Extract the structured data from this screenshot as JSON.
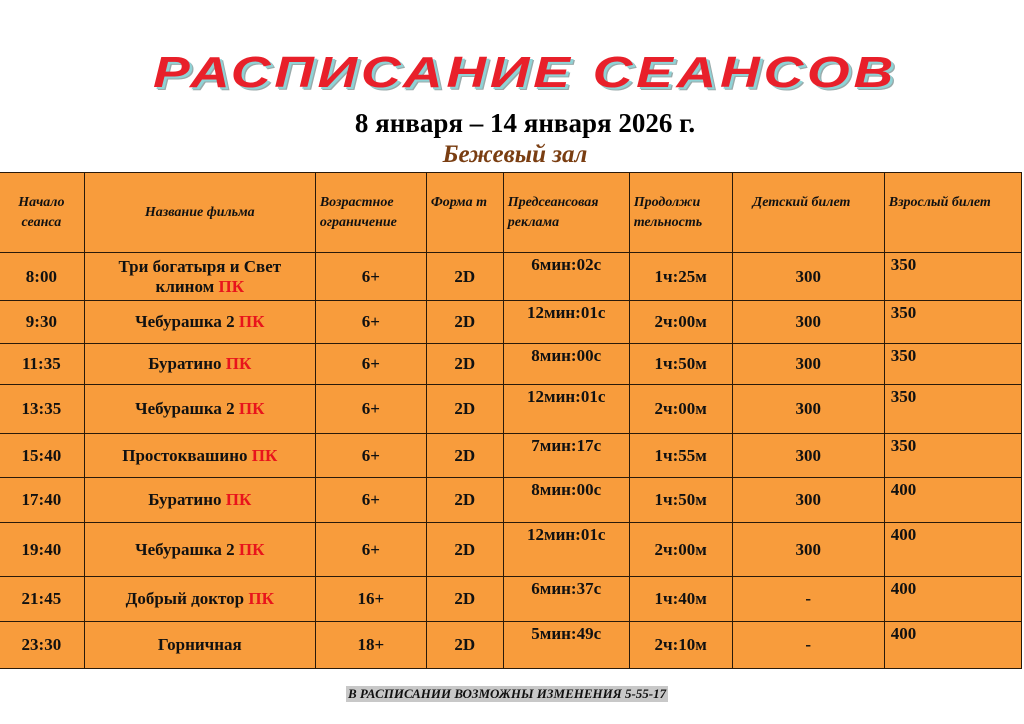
{
  "title": "РАСПИСАНИЕ СЕАНСОВ",
  "date_range": "8 января – 14 января 2026 г.",
  "hall": "Бежевый зал",
  "columns": [
    "Начало сеанса",
    "Название фильма",
    "Возрастное ограничение",
    "Форма т",
    "Предсеансовая реклама",
    "Продолжи тельность",
    "Детский билет",
    "Взрослый билет"
  ],
  "rows": [
    {
      "time": "8:00",
      "film": "Три богатыря и Свет клином",
      "tag": "ПК",
      "age": "6+",
      "format": "2D",
      "ads": "6мин:02с",
      "duration": "1ч:25м",
      "child": "300",
      "adult": "350"
    },
    {
      "time": "9:30",
      "film": "Чебурашка 2",
      "tag": "ПК",
      "age": "6+",
      "format": "2D",
      "ads": "12мин:01с",
      "duration": "2ч:00м",
      "child": "300",
      "adult": "350"
    },
    {
      "time": "11:35",
      "film": "Буратино",
      "tag": "ПК",
      "age": "6+",
      "format": "2D",
      "ads": "8мин:00с",
      "duration": "1ч:50м",
      "child": "300",
      "adult": "350"
    },
    {
      "time": "13:35",
      "film": "Чебурашка 2",
      "tag": "ПК",
      "age": "6+",
      "format": "2D",
      "ads": "12мин:01с",
      "duration": "2ч:00м",
      "child": "300",
      "adult": "350"
    },
    {
      "time": "15:40",
      "film": "Простоквашино",
      "tag": "ПК",
      "age": "6+",
      "format": "2D",
      "ads": "7мин:17с",
      "duration": "1ч:55м",
      "child": "300",
      "adult": "350"
    },
    {
      "time": "17:40",
      "film": "Буратино",
      "tag": "ПК",
      "age": "6+",
      "format": "2D",
      "ads": "8мин:00с",
      "duration": "1ч:50м",
      "child": "300",
      "adult": "400"
    },
    {
      "time": "19:40",
      "film": "Чебурашка 2",
      "tag": "ПК",
      "age": "6+",
      "format": "2D",
      "ads": "12мин:01с",
      "duration": "2ч:00м",
      "child": "300",
      "adult": "400"
    },
    {
      "time": "21:45",
      "film": "Добрый доктор",
      "tag": "ПК",
      "age": "16+",
      "format": "2D",
      "ads": "6мин:37с",
      "duration": "1ч:40м",
      "child": "-",
      "adult": "400"
    },
    {
      "time": "23:30",
      "film": "Горничная",
      "tag": "",
      "age": "18+",
      "format": "2D",
      "ads": "5мин:49с",
      "duration": "2ч:10м",
      "child": "-",
      "adult": "400"
    }
  ],
  "footer": "В РАСПИСАНИИ ВОЗМОЖНЫ ИЗМЕНЕНИЯ 5-55-17",
  "colors": {
    "table_bg": "#f89c3c",
    "title": "#e8202a",
    "hall": "#7a3e12",
    "tag": "#e8141c"
  }
}
